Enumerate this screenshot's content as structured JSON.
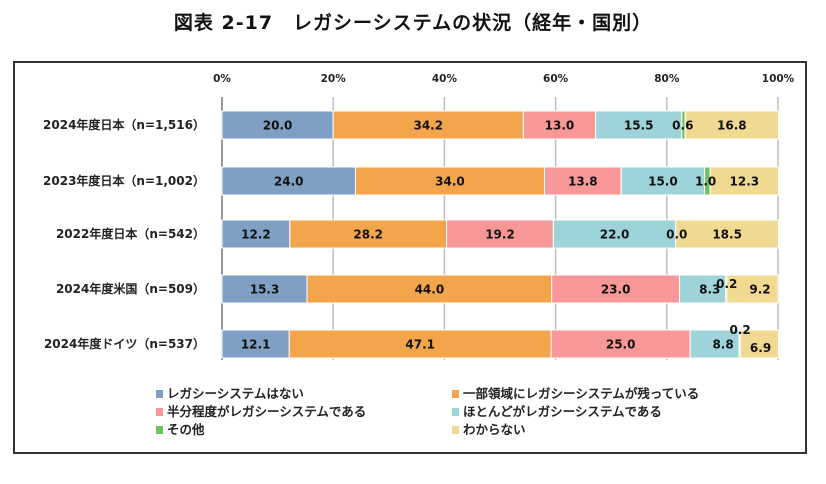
{
  "chart_data": {
    "type": "bar",
    "orientation": "horizontal",
    "stacked": "percent",
    "title": "図表 2-17　レガシーシステムの状況（経年・国別）",
    "xlabel": "",
    "ylabel": "",
    "xlim": [
      0,
      100
    ],
    "x_ticks": [
      "0%",
      "20%",
      "40%",
      "60%",
      "80%",
      "100%"
    ],
    "grid": true,
    "legend_position": "bottom",
    "categories": [
      "2024年度日本（n=1,516）",
      "2023年度日本（n=1,002）",
      "2022年度日本（n=542）",
      "2024年度米国（n=509）",
      "2024年度ドイツ（n=537）"
    ],
    "series": [
      {
        "name": "レガシーシステムはない",
        "color": "#7f9fc4",
        "values": [
          20.0,
          24.0,
          12.2,
          15.3,
          12.1
        ]
      },
      {
        "name": "一部領域にレガシーシステムが残っている",
        "color": "#f2a54a",
        "values": [
          34.2,
          34.0,
          28.2,
          44.0,
          47.1
        ]
      },
      {
        "name": "半分程度がレガシーシステムである",
        "color": "#f79797",
        "values": [
          13.0,
          13.8,
          19.2,
          23.0,
          25.0
        ]
      },
      {
        "name": "ほとんどがレガシーシステムである",
        "color": "#9dd3d9",
        "values": [
          15.5,
          15.0,
          22.0,
          8.3,
          8.8
        ]
      },
      {
        "name": "その他",
        "color": "#6cc160",
        "values": [
          0.6,
          1.0,
          0.0,
          0.2,
          0.2
        ]
      },
      {
        "name": "わからない",
        "color": "#f0da92",
        "values": [
          16.8,
          12.3,
          18.5,
          9.2,
          6.9
        ]
      }
    ]
  }
}
